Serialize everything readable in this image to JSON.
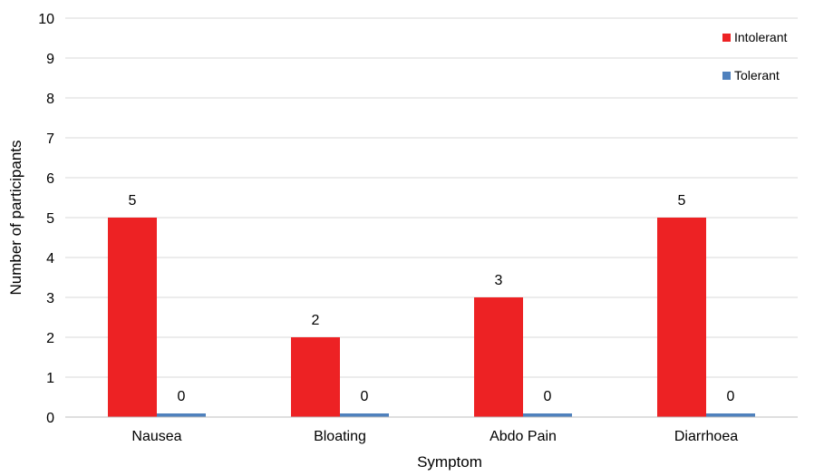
{
  "chart_data": {
    "type": "bar",
    "categories": [
      "Nausea",
      "Bloating",
      "Abdo Pain",
      "Diarrhoea"
    ],
    "series": [
      {
        "name": "Intolerant",
        "values": [
          5,
          2,
          3,
          5
        ],
        "color": "#ed2224"
      },
      {
        "name": "Tolerant",
        "values": [
          0,
          0,
          0,
          0
        ],
        "color": "#4f81bd"
      }
    ],
    "data_labels": {
      "Intolerant": [
        "5",
        "2",
        "3",
        "5"
      ],
      "Tolerant": [
        "0",
        "0",
        "0",
        "0"
      ]
    },
    "xlabel": "Symptom",
    "ylabel": "Number of participants",
    "ylim": [
      0,
      10
    ],
    "yticks": [
      0,
      1,
      2,
      3,
      4,
      5,
      6,
      7,
      8,
      9,
      10
    ],
    "grid": true,
    "legend_position": "top-right"
  }
}
